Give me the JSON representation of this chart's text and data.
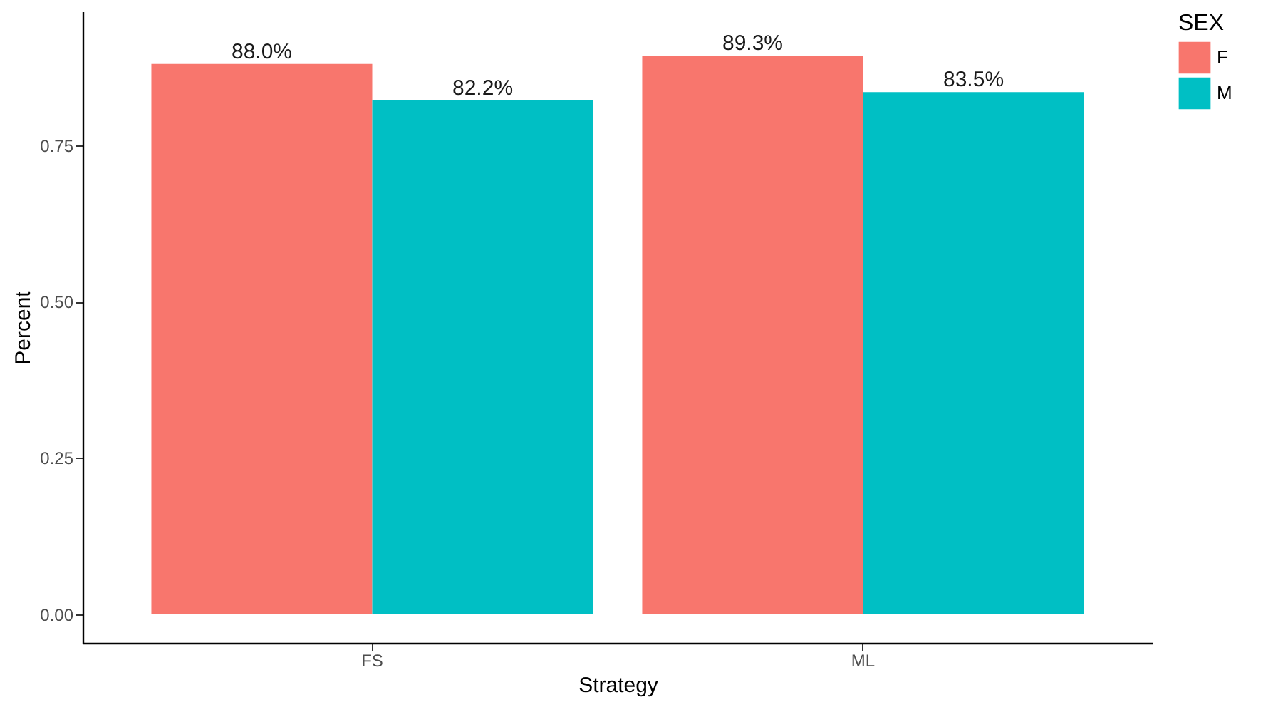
{
  "chart_data": {
    "type": "bar",
    "xlabel": "Strategy",
    "ylabel": "Percent",
    "legend_title": "SEX",
    "categories": [
      "FS",
      "ML"
    ],
    "series": [
      {
        "name": "F",
        "color": "#f8766d",
        "values": [
          0.88,
          0.893
        ],
        "value_labels": [
          "88.0%",
          "89.3%"
        ]
      },
      {
        "name": "M",
        "color": "#00bfc4",
        "values": [
          0.822,
          0.835
        ],
        "value_labels": [
          "82.2%",
          "83.5%"
        ]
      }
    ],
    "ylim": [
      -0.046,
      0.964
    ],
    "yticks": [
      {
        "value": 0,
        "label": "0.00"
      },
      {
        "value": 0.25,
        "label": "0.25"
      },
      {
        "value": 0.5,
        "label": "0.50"
      },
      {
        "value": 0.75,
        "label": "0.75"
      }
    ],
    "grid": false,
    "legend": "right"
  }
}
